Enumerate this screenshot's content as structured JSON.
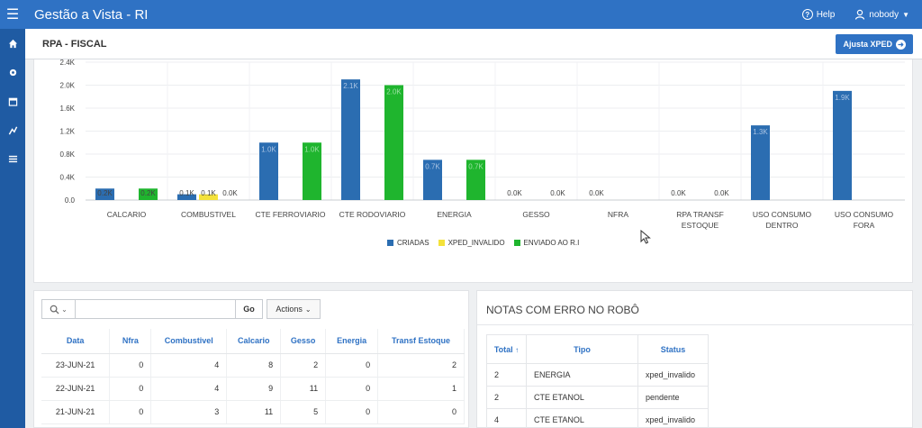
{
  "header": {
    "app_title": "Gestão a Vista - RI",
    "help_label": "Help",
    "user_label": "nobody"
  },
  "sidenav": {
    "items": [
      "home-icon",
      "gear-icon",
      "calendar-icon",
      "chart-icon",
      "list-icon"
    ]
  },
  "page": {
    "title": "RPA - FISCAL",
    "ajusta_button": "Ajusta XPED"
  },
  "chart_data": {
    "type": "bar",
    "categories": [
      "CALCARIO",
      "COMBUSTIVEL",
      "CTE FERROVIARIO",
      "CTE RODOVIARIO",
      "ENERGIA",
      "GESSO",
      "NFRA",
      "RPA TRANSF ESTOQUE",
      "USO CONSUMO DENTRO",
      "USO CONSUMO FORA"
    ],
    "category_lines": [
      [
        "CALCARIO"
      ],
      [
        "COMBUSTIVEL"
      ],
      [
        "CTE FERROVIARIO"
      ],
      [
        "CTE RODOVIARIO"
      ],
      [
        "ENERGIA"
      ],
      [
        "GESSO"
      ],
      [
        "NFRA"
      ],
      [
        "RPA TRANSF",
        "ESTOQUE"
      ],
      [
        "USO CONSUMO",
        "DENTRO"
      ],
      [
        "USO CONSUMO",
        "FORA"
      ]
    ],
    "series": [
      {
        "name": "CRIADAS",
        "color": "#2b6db1",
        "values": [
          0.2,
          0.1,
          1.0,
          2.1,
          0.7,
          0.0,
          0.0,
          0.0,
          1.3,
          1.9
        ],
        "labels": [
          "0.2K",
          "0.1K",
          "1.0K",
          "2.1K",
          "0.7K",
          "0.0K",
          "0.0K",
          "0.0K",
          "1.3K",
          "1.9K"
        ]
      },
      {
        "name": "XPED_INVALIDO",
        "color": "#f4e23a",
        "values": [
          null,
          0.1,
          null,
          null,
          null,
          null,
          null,
          null,
          null,
          null
        ],
        "labels": [
          "",
          "0.1K",
          "",
          "",
          "",
          "",
          "",
          "",
          "",
          ""
        ]
      },
      {
        "name": "ENVIADO AO R.I",
        "color": "#1fb52e",
        "values": [
          0.2,
          0.0,
          1.0,
          2.0,
          0.7,
          0.0,
          null,
          0.0,
          null,
          null
        ],
        "labels": [
          "0.2K",
          "0.0K",
          "1.0K",
          "2.0K",
          "0.7K",
          "0.0K",
          "",
          "0.0K",
          "",
          ""
        ]
      }
    ],
    "y_ticks": [
      "0.0",
      "0.4K",
      "0.8K",
      "1.2K",
      "1.6K",
      "2.0K",
      "2.4K"
    ],
    "ylim": [
      0,
      2.4
    ],
    "ylabel": "",
    "xlabel": "",
    "grid": true,
    "legend_position": "bottom"
  },
  "report": {
    "search_placeholder": "",
    "go_label": "Go",
    "actions_label": "Actions",
    "columns": [
      "Data",
      "Nfra",
      "Combustivel",
      "Calcario",
      "Gesso",
      "Energia",
      "Transf Estoque"
    ],
    "rows": [
      [
        "23-JUN-21",
        "0",
        "4",
        "8",
        "2",
        "0",
        "2"
      ],
      [
        "22-JUN-21",
        "0",
        "4",
        "9",
        "11",
        "0",
        "1"
      ],
      [
        "21-JUN-21",
        "0",
        "3",
        "11",
        "5",
        "0",
        "0"
      ]
    ]
  },
  "notas": {
    "title": "NOTAS COM ERRO NO ROBÔ",
    "columns": [
      "Total",
      "Tipo",
      "Status"
    ],
    "rows": [
      [
        "2",
        "ENERGIA",
        "xped_invalido"
      ],
      [
        "2",
        "CTE ETANOL",
        "pendente"
      ],
      [
        "4",
        "CTE ETANOL",
        "xped_invalido"
      ]
    ]
  }
}
